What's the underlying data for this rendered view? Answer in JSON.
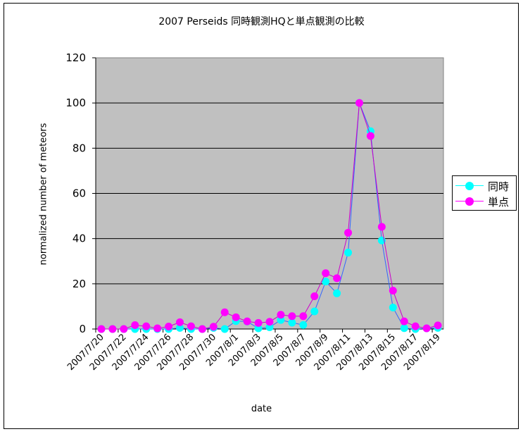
{
  "chart_data": {
    "type": "line",
    "title": "2007 Perseids 同時観測HQと単点観測の比較",
    "xlabel": "date",
    "ylabel": "normalized number of meteors",
    "ylim": [
      0,
      120
    ],
    "yticks": [
      0,
      20,
      40,
      60,
      80,
      100,
      120
    ],
    "grid": true,
    "legend_position": "right",
    "x": [
      "2007/7/20",
      "2007/7/21",
      "2007/7/22",
      "2007/7/23",
      "2007/7/24",
      "2007/7/25",
      "2007/7/26",
      "2007/7/27",
      "2007/7/28",
      "2007/7/29",
      "2007/7/30",
      "2007/7/31",
      "2007/8/1",
      "2007/8/2",
      "2007/8/3",
      "2007/8/4",
      "2007/8/5",
      "2007/8/6",
      "2007/8/7",
      "2007/8/8",
      "2007/8/9",
      "2007/8/10",
      "2007/8/11",
      "2007/8/12",
      "2007/8/13",
      "2007/8/14",
      "2007/8/15",
      "2007/8/16",
      "2007/8/17",
      "2007/8/18",
      "2007/8/19"
    ],
    "xtick_labels": [
      "2007/7/20",
      "2007/7/22",
      "2007/7/24",
      "2007/7/26",
      "2007/7/28",
      "2007/7/30",
      "2007/8/1",
      "2007/8/3",
      "2007/8/5",
      "2007/8/7",
      "2007/8/9",
      "2007/8/11",
      "2007/8/13",
      "2007/8/15",
      "2007/8/17",
      "2007/8/19"
    ],
    "series": [
      {
        "name": "同時",
        "color": "#00FFFF",
        "values": [
          0,
          0,
          0,
          0,
          0,
          0,
          0,
          0.5,
          0,
          0,
          0.5,
          0,
          3.5,
          3.3,
          0.3,
          0.8,
          4,
          2.8,
          1.8,
          7.8,
          21,
          15.8,
          33.8,
          100,
          87.5,
          39.2,
          9.5,
          0.4,
          0,
          0.3,
          0.5
        ]
      },
      {
        "name": "単点",
        "color": "#FF00FF",
        "values": [
          0,
          0,
          0,
          1.7,
          1.2,
          0.3,
          1.1,
          3,
          1.2,
          0,
          1,
          7.4,
          5.2,
          3.4,
          2.7,
          3.2,
          6.3,
          5.7,
          5.7,
          14.5,
          24.7,
          22.5,
          42.6,
          100,
          85.4,
          45.2,
          17,
          3.4,
          1.2,
          0.3,
          1.6
        ]
      }
    ]
  },
  "colors": {
    "plot_bg": "#C0C0C0",
    "series1_line": "#3366FF",
    "series2_line": "#CC00CC"
  }
}
